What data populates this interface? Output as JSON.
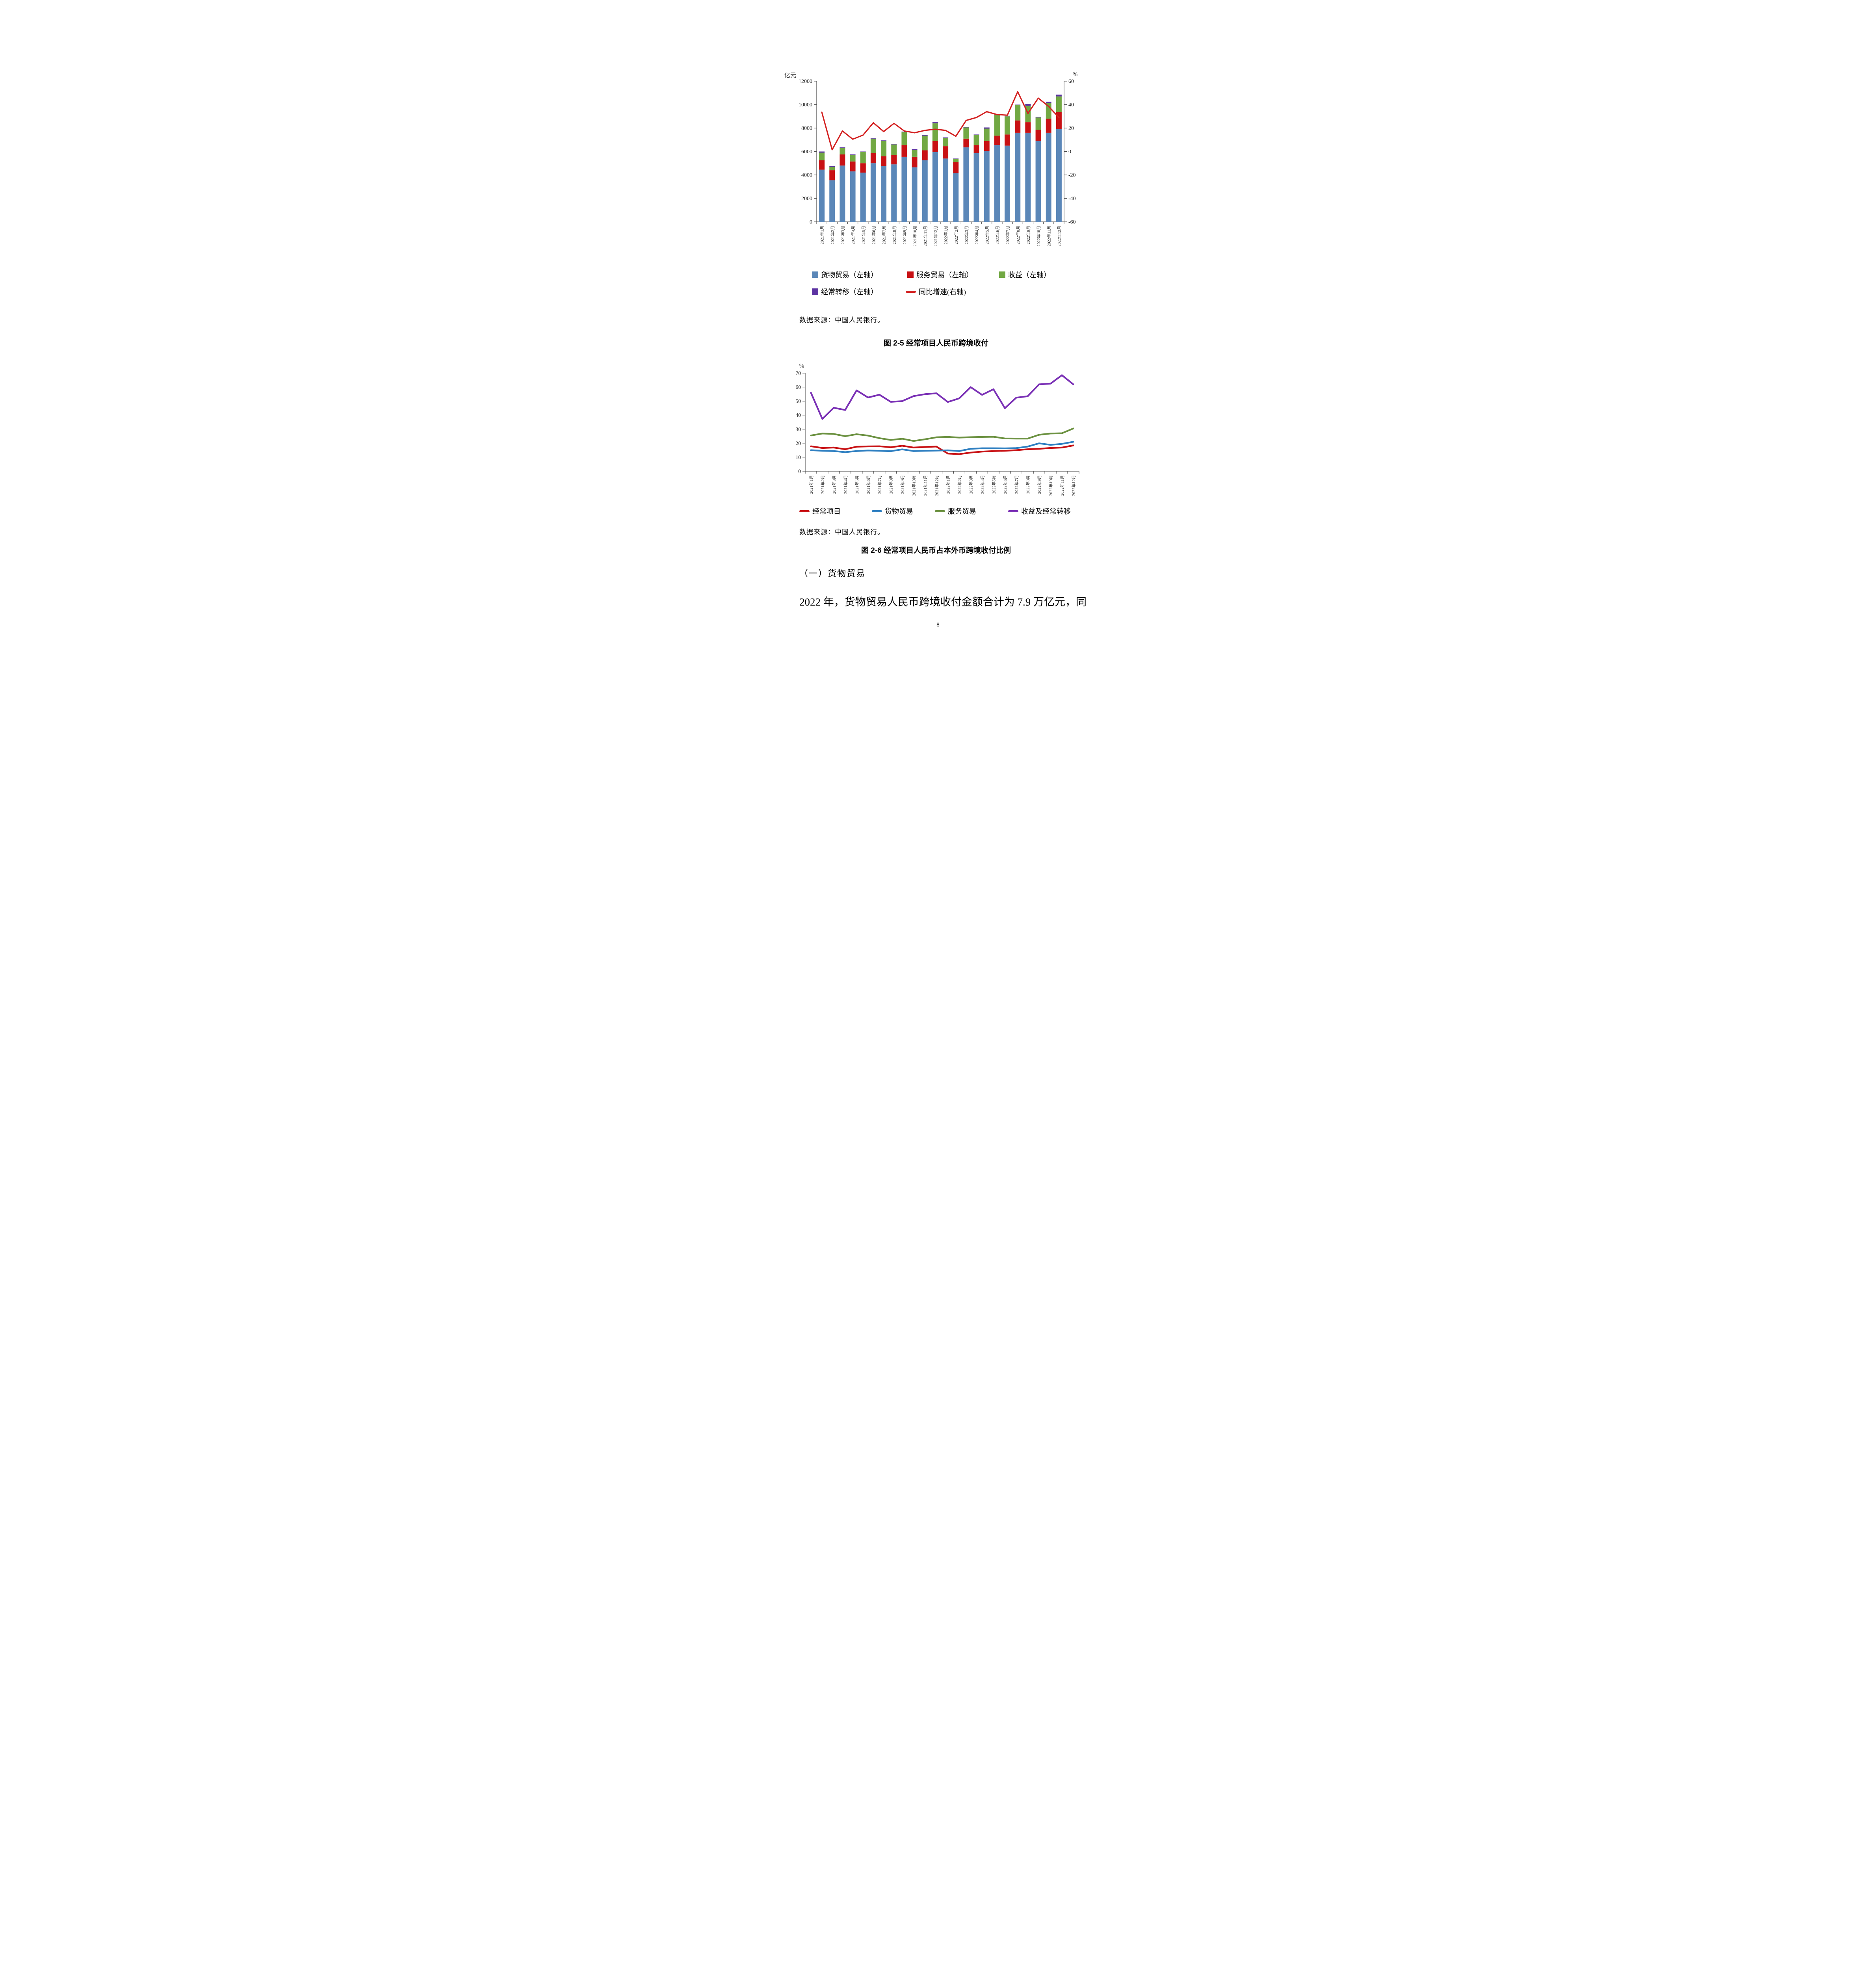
{
  "page_number": "8",
  "texts": {
    "section_heading": "（一）货物贸易",
    "paragraph": "2022 年，货物贸易人民币跨境收付金额合计为 7.9 万亿元，同"
  },
  "chart_data": [
    {
      "type": "bar",
      "subtype": "stacked-bars-with-growth-line",
      "title": "图 2-5 经常项目人民币跨境收付",
      "source": "数据来源：中国人民银行。",
      "unit_left": "亿元",
      "unit_right": "%",
      "y_left": {
        "min": 0,
        "max": 12000,
        "step": 2000
      },
      "y_right": {
        "min": -60,
        "max": 60,
        "step": 20
      },
      "legend_position": "bottom",
      "categories": [
        "2021年1月",
        "2021年2月",
        "2021年3月",
        "2021年4月",
        "2021年5月",
        "2021年6月",
        "2021年7月",
        "2021年8月",
        "2021年9月",
        "2021年10月",
        "2021年11月",
        "2021年12月",
        "2022年1月",
        "2022年2月",
        "2022年3月",
        "2022年4月",
        "2022年5月",
        "2022年6月",
        "2022年7月",
        "2022年8月",
        "2022年9月",
        "2022年10月",
        "2022年11月",
        "2022年12月"
      ],
      "stack_series": [
        {
          "name": "货物贸易（左轴）",
          "color": "#5B87B8",
          "values": [
            4450,
            3550,
            4800,
            4300,
            4200,
            5000,
            4750,
            4900,
            5550,
            4650,
            5250,
            5950,
            5400,
            4150,
            6350,
            5850,
            6050,
            6550,
            6500,
            7600,
            7600,
            6900,
            7600,
            7900
          ]
        },
        {
          "name": "服务贸易（左轴）",
          "color": "#C81114",
          "values": [
            800,
            850,
            950,
            850,
            800,
            850,
            850,
            800,
            1000,
            900,
            850,
            950,
            1050,
            950,
            750,
            700,
            850,
            800,
            950,
            1050,
            900,
            950,
            1200,
            1450
          ]
        },
        {
          "name": "收益（左轴）",
          "color": "#72A843",
          "values": [
            650,
            300,
            550,
            550,
            950,
            1250,
            1300,
            900,
            1100,
            600,
            1250,
            1500,
            700,
            250,
            950,
            850,
            1050,
            1800,
            1550,
            1300,
            1400,
            1050,
            1350,
            1350
          ]
        },
        {
          "name": "经常转移（左轴）",
          "color": "#5C33A2",
          "values": [
            100,
            50,
            50,
            50,
            50,
            50,
            50,
            50,
            50,
            50,
            50,
            100,
            50,
            50,
            50,
            50,
            100,
            50,
            50,
            50,
            150,
            50,
            100,
            150
          ]
        }
      ],
      "line_series": {
        "name": "同比增速(右轴)",
        "color": "#D32020",
        "values": [
          33.5,
          1.5,
          17.5,
          10.5,
          14,
          24.5,
          17,
          24,
          17.5,
          16,
          18,
          19,
          18,
          13,
          26.5,
          29,
          34,
          31.5,
          31,
          51,
          32.5,
          45.5,
          38.5,
          29
        ]
      }
    },
    {
      "type": "line",
      "title": "图 2-6 经常项目人民币占本外币跨境收付比例",
      "source": "数据来源：中国人民银行。",
      "unit": "%",
      "y": {
        "min": 0,
        "max": 70,
        "step": 10
      },
      "legend_position": "bottom",
      "categories": [
        "2021年1月",
        "2021年2月",
        "2021年3月",
        "2021年4月",
        "2021年5月",
        "2021年6月",
        "2021年7月",
        "2021年8月",
        "2021年9月",
        "2021年10月",
        "2021年11月",
        "2021年12月",
        "2022年1月",
        "2022年2月",
        "2022年3月",
        "2022年4月",
        "2022年5月",
        "2022年6月",
        "2022年7月",
        "2022年8月",
        "2022年9月",
        "2022年10月",
        "2022年11月",
        "2022年12月"
      ],
      "series": [
        {
          "name": "经常项目",
          "color": "#C81114",
          "values": [
            17.8,
            16.6,
            16.9,
            15.7,
            17.5,
            17.7,
            17.8,
            17.1,
            18.2,
            16.9,
            17.3,
            17.6,
            12.6,
            12.2,
            13.3,
            14.0,
            14.4,
            14.6,
            15.0,
            15.7,
            16.0,
            16.6,
            16.9,
            18.4
          ]
        },
        {
          "name": "货物贸易",
          "color": "#2E7FC1",
          "values": [
            15.0,
            14.6,
            14.4,
            13.6,
            14.4,
            14.8,
            14.6,
            14.3,
            15.6,
            14.4,
            14.6,
            14.7,
            14.9,
            14.4,
            16.0,
            16.4,
            16.4,
            16.3,
            16.5,
            17.6,
            19.9,
            18.8,
            19.5,
            21.0
          ]
        },
        {
          "name": "服务贸易",
          "color": "#6B9140",
          "values": [
            25.5,
            26.9,
            26.6,
            25.0,
            26.4,
            25.4,
            23.6,
            22.3,
            23.2,
            21.6,
            22.8,
            24.2,
            24.5,
            24.0,
            24.3,
            24.5,
            24.6,
            23.4,
            23.3,
            23.3,
            26.0,
            26.9,
            27.1,
            30.5
          ]
        },
        {
          "name": "收益及经常转移",
          "color": "#7A30B5",
          "values": [
            56.0,
            37.3,
            45.3,
            43.7,
            57.7,
            52.6,
            54.6,
            49.5,
            50.0,
            53.6,
            55.0,
            55.6,
            49.4,
            52.0,
            60.0,
            54.5,
            58.5,
            45.0,
            52.5,
            53.5,
            62.0,
            62.5,
            68.5,
            62.0
          ]
        }
      ]
    }
  ]
}
